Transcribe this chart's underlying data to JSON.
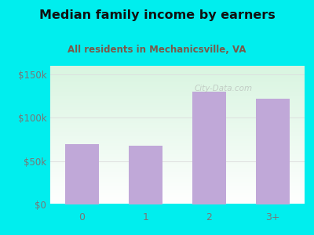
{
  "categories": [
    "0",
    "1",
    "2",
    "3+"
  ],
  "values": [
    70000,
    68000,
    130000,
    122000
  ],
  "bar_color": "#C0A8D8",
  "title": "Median family income by earners",
  "subtitle": "All residents in Mechanicsville, VA",
  "title_color": "#111111",
  "subtitle_color": "#7a5a4a",
  "outer_bg_color": "#00EEEE",
  "yticks": [
    0,
    50000,
    100000,
    150000
  ],
  "ytick_labels": [
    "$0",
    "$50k",
    "$100k",
    "$150k"
  ],
  "ylim": [
    0,
    160000
  ],
  "grid_color": "#dddddd",
  "watermark": "City-Data.com",
  "tick_label_color": "#777777"
}
